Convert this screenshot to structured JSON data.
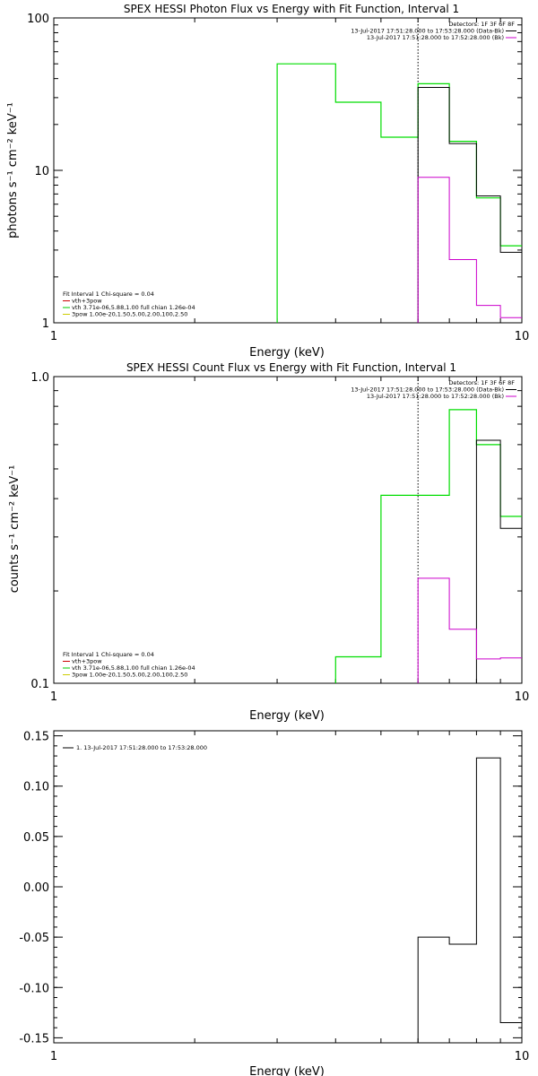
{
  "chart_data": [
    {
      "type": "line",
      "title": "SPEX HESSI Photon Flux vs Energy with Fit Function, Interval 1",
      "xlabel": "Energy (keV)",
      "ylabel": "photons s⁻¹ cm⁻² keV⁻¹",
      "xscale": "log",
      "yscale": "log",
      "xlim": [
        1,
        10
      ],
      "ylim": [
        1,
        100
      ],
      "xticks": [
        {
          "v": 1,
          "label": "1"
        },
        {
          "v": 10,
          "label": "10"
        }
      ],
      "yticks": [
        {
          "v": 1,
          "label": "1"
        },
        {
          "v": 10,
          "label": "10"
        },
        {
          "v": 100,
          "label": "100"
        }
      ],
      "marker_line_x": 6.0,
      "legend_tr": {
        "header": "Detectors: 1F 3F 6F 8F",
        "entries": [
          {
            "text": "13-Jul-2017 17:51:28.000 to 17:53:28.000 (Data-Bk)",
            "color": "#000000"
          },
          {
            "text": "13-Jul-2017 17:51:28.000 to 17:52:28.000 (Bk)",
            "color": "#cc00cc"
          }
        ]
      },
      "legend_bl": {
        "header": "Fit Interval 1    Chi-square = 0.04",
        "entries": [
          {
            "text": "vth+3pow",
            "color": "#cc0000"
          },
          {
            "text": "vth 3.71e-06,5.88,1.00  full chian 1.26e-04",
            "color": "#00cc00"
          },
          {
            "text": "3pow 1.00e-20,1.50,5.00,2.00,100,2.50",
            "color": "#cccc00"
          }
        ]
      },
      "series": [
        {
          "color": "#00dd00",
          "width": 1.2,
          "edges": [
            3.0,
            4.0,
            5.0,
            6.0,
            7.0,
            8.0,
            9.0,
            10.0
          ],
          "values": [
            50,
            28,
            16.5,
            37,
            15.5,
            6.6,
            3.2
          ]
        },
        {
          "color": "#000000",
          "width": 1,
          "edges": [
            6.0,
            7.0,
            8.0,
            9.0,
            10.0
          ],
          "values": [
            35,
            15,
            6.8,
            2.9
          ]
        },
        {
          "color": "#cc00cc",
          "width": 1,
          "edges": [
            6.0,
            7.0,
            8.0,
            9.0,
            10.0
          ],
          "values": [
            9,
            2.6,
            1.3,
            1.08
          ]
        }
      ]
    },
    {
      "type": "line",
      "title": "SPEX HESSI Count Flux vs Energy with Fit Function, Interval 1",
      "xlabel": "Energy (keV)",
      "ylabel": "counts s⁻¹ cm⁻² keV⁻¹",
      "xscale": "log",
      "yscale": "log",
      "xlim": [
        1,
        10
      ],
      "ylim": [
        0.1,
        1.0
      ],
      "xticks": [
        {
          "v": 1,
          "label": "1"
        },
        {
          "v": 10,
          "label": "10"
        }
      ],
      "yticks": [
        {
          "v": 0.1,
          "label": "0.1"
        },
        {
          "v": 1.0,
          "label": "1.0"
        }
      ],
      "marker_line_x": 6.0,
      "legend_tr": {
        "header": "Detectors: 1F 3F 6F 8F",
        "entries": [
          {
            "text": "13-Jul-2017 17:51:28.000 to 17:53:28.000 (Data-Bk)",
            "color": "#000000"
          },
          {
            "text": "13-Jul-2017 17:51:28.000 to 17:52:28.000 (Bk)",
            "color": "#cc00cc"
          }
        ]
      },
      "legend_bl": {
        "header": "Fit Interval 1    Chi-square = 0.04",
        "entries": [
          {
            "text": "vth+3pow",
            "color": "#cc0000"
          },
          {
            "text": "vth 3.71e-06,5.88,1.00  full chian 1.26e-04",
            "color": "#00cc00"
          },
          {
            "text": "3pow 1.00e-20,1.50,5.00,2.00,100,2.50",
            "color": "#cccc00"
          }
        ]
      },
      "series": [
        {
          "color": "#00dd00",
          "width": 1.2,
          "edges": [
            4.0,
            5.0,
            6.0,
            7.0,
            8.0,
            9.0,
            10.0
          ],
          "values": [
            0.122,
            0.41,
            0.41,
            0.78,
            0.6,
            0.35
          ]
        },
        {
          "color": "#000000",
          "width": 1,
          "edges": [
            8.0,
            9.0,
            10.0
          ],
          "values": [
            0.62,
            0.32
          ]
        },
        {
          "color": "#cc00cc",
          "width": 1,
          "edges": [
            6.0,
            7.0,
            8.0,
            9.0,
            10.0
          ],
          "values": [
            0.22,
            0.15,
            0.12,
            0.121
          ]
        }
      ]
    },
    {
      "type": "line",
      "title": "",
      "xlabel": "Energy (keV)",
      "ylabel": "",
      "xscale": "log",
      "yscale": "linear",
      "xlim": [
        1,
        10
      ],
      "ylim": [
        -0.155,
        0.155
      ],
      "xticks": [
        {
          "v": 1,
          "label": "1"
        },
        {
          "v": 10,
          "label": "10"
        }
      ],
      "yticks": [
        {
          "v": 0.15,
          "label": "0.15"
        },
        {
          "v": 0.1,
          "label": "0.10"
        },
        {
          "v": 0.05,
          "label": "0.05"
        },
        {
          "v": 0.0,
          "label": "0.00"
        },
        {
          "v": -0.05,
          "label": "-0.05"
        },
        {
          "v": -0.1,
          "label": "-0.10"
        },
        {
          "v": -0.15,
          "label": "-0.15"
        }
      ],
      "legend_tl": {
        "entries": [
          {
            "text": "1. 13-Jul-2017 17:51:28.000 to 17:53:28.000",
            "color": "#000000"
          }
        ]
      },
      "series": [
        {
          "color": "#000000",
          "width": 1,
          "edges": [
            6.0,
            7.0,
            8.0,
            9.0,
            10.0
          ],
          "values": [
            -0.05,
            -0.057,
            0.128,
            -0.135
          ]
        }
      ]
    }
  ]
}
